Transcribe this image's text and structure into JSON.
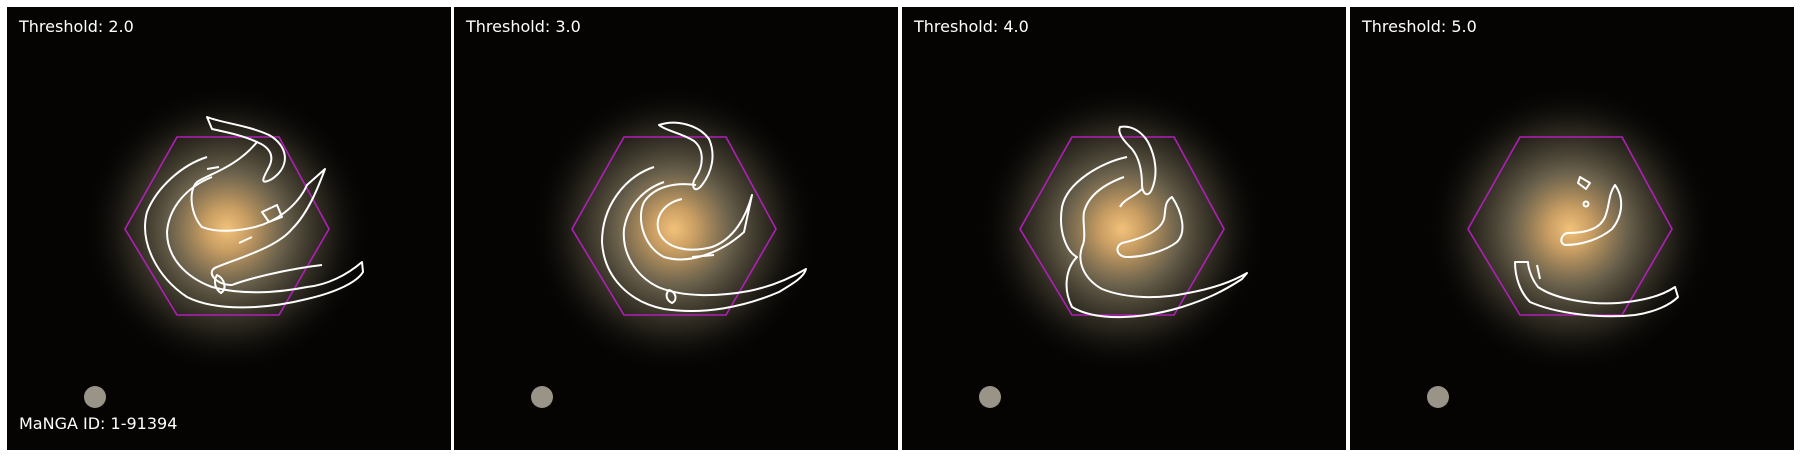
{
  "panels": [
    {
      "threshold_label": "Threshold: 2.0"
    },
    {
      "threshold_label": "Threshold: 3.0"
    },
    {
      "threshold_label": "Threshold: 4.0"
    },
    {
      "threshold_label": "Threshold: 5.0"
    }
  ],
  "galaxy_id_label": "MaNGA ID: 1-91394",
  "colors": {
    "background": "#050403",
    "hexagon": "#b01fb8",
    "contour": "#ffffff",
    "galaxy_core": "#e8b56a",
    "galaxy_halo": "#6d6450",
    "separator": "#ffffff"
  }
}
